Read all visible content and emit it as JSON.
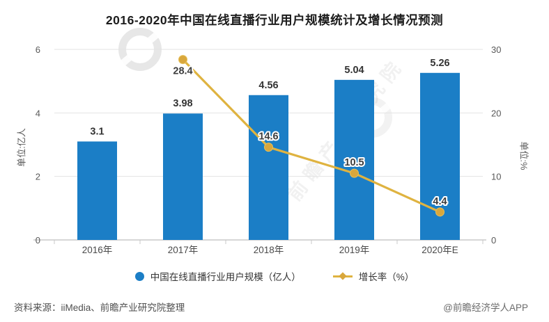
{
  "chart_data": {
    "type": "bar",
    "title": "2016-2020年中国在线直播行业用户规模统计及增长情况预测",
    "categories": [
      "2016年",
      "2017年",
      "2018年",
      "2019年",
      "2020年E"
    ],
    "series": [
      {
        "name": "中国在线直播行业用户规模（亿人）",
        "type": "bar",
        "axis": "left",
        "values": [
          3.1,
          3.98,
          4.56,
          5.04,
          5.26
        ],
        "color": "#1b7ec6"
      },
      {
        "name": "增长率（%）",
        "type": "line",
        "axis": "right",
        "values": [
          null,
          28.4,
          14.6,
          10.5,
          4.4
        ],
        "color": "#dfb340",
        "marker_color": "#d9a73c"
      }
    ],
    "left_axis": {
      "label": "单位:亿人",
      "min": 0,
      "max": 6,
      "ticks": [
        0,
        2,
        4,
        6
      ]
    },
    "right_axis": {
      "label": "单位:%",
      "min": 0,
      "max": 30,
      "ticks": [
        0,
        10,
        20,
        30
      ]
    },
    "grid": true,
    "legend_position": "bottom"
  },
  "footer": {
    "source": "资料来源：iiMedia、前瞻产业研究院整理",
    "credit": "@前瞻经济学人APP"
  },
  "watermark": {
    "text": "前瞻产业研究院"
  }
}
